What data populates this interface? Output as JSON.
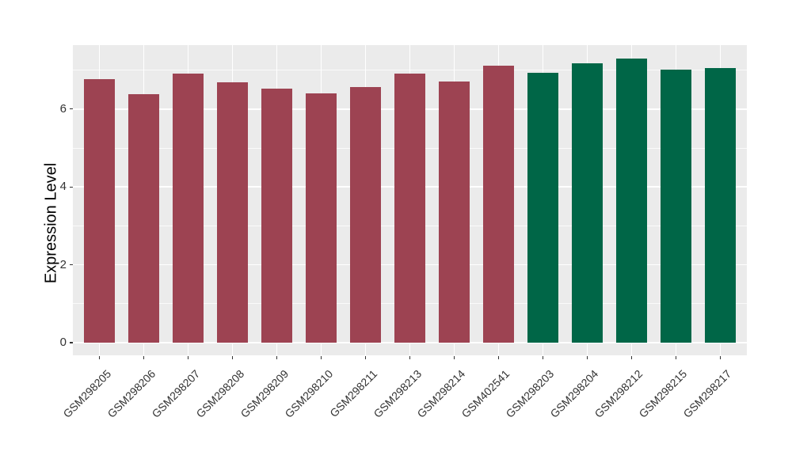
{
  "chart_data": {
    "type": "bar",
    "title": "",
    "xlabel": "",
    "ylabel": "Expression Level",
    "categories": [
      "GSM298205",
      "GSM298206",
      "GSM298207",
      "GSM298208",
      "GSM298209",
      "GSM298210",
      "GSM298211",
      "GSM298213",
      "GSM298214",
      "GSM402541",
      "GSM298203",
      "GSM298204",
      "GSM298212",
      "GSM298215",
      "GSM298217"
    ],
    "values": [
      6.77,
      6.39,
      6.92,
      6.69,
      6.52,
      6.41,
      6.56,
      6.92,
      6.71,
      7.12,
      6.94,
      7.18,
      7.29,
      7.02,
      7.06
    ],
    "bar_colors": [
      "#9D4352",
      "#9D4352",
      "#9D4352",
      "#9D4352",
      "#9D4352",
      "#9D4352",
      "#9D4352",
      "#9D4352",
      "#9D4352",
      "#9D4352",
      "#006647",
      "#006647",
      "#006647",
      "#006647",
      "#006647"
    ],
    "group_colors": {
      "group1": "#9D4352",
      "group2": "#006647"
    },
    "ylim": [
      0,
      7.65
    ],
    "yticks": [
      0,
      2,
      4,
      6
    ],
    "minor_yticks": [
      1,
      3,
      5,
      7
    ],
    "ytick_labels": [
      "0",
      "2",
      "4",
      "6"
    ],
    "x_tick_rotation_deg": 45,
    "grid": true,
    "legend": "none",
    "panel_bg": "#EBEBEB",
    "grid_color": "#FFFFFF",
    "tick_color": "#333333",
    "tick_label_color": "#333333",
    "axis_title_color": "#000000",
    "figure_bg": "#FFFFFF"
  }
}
